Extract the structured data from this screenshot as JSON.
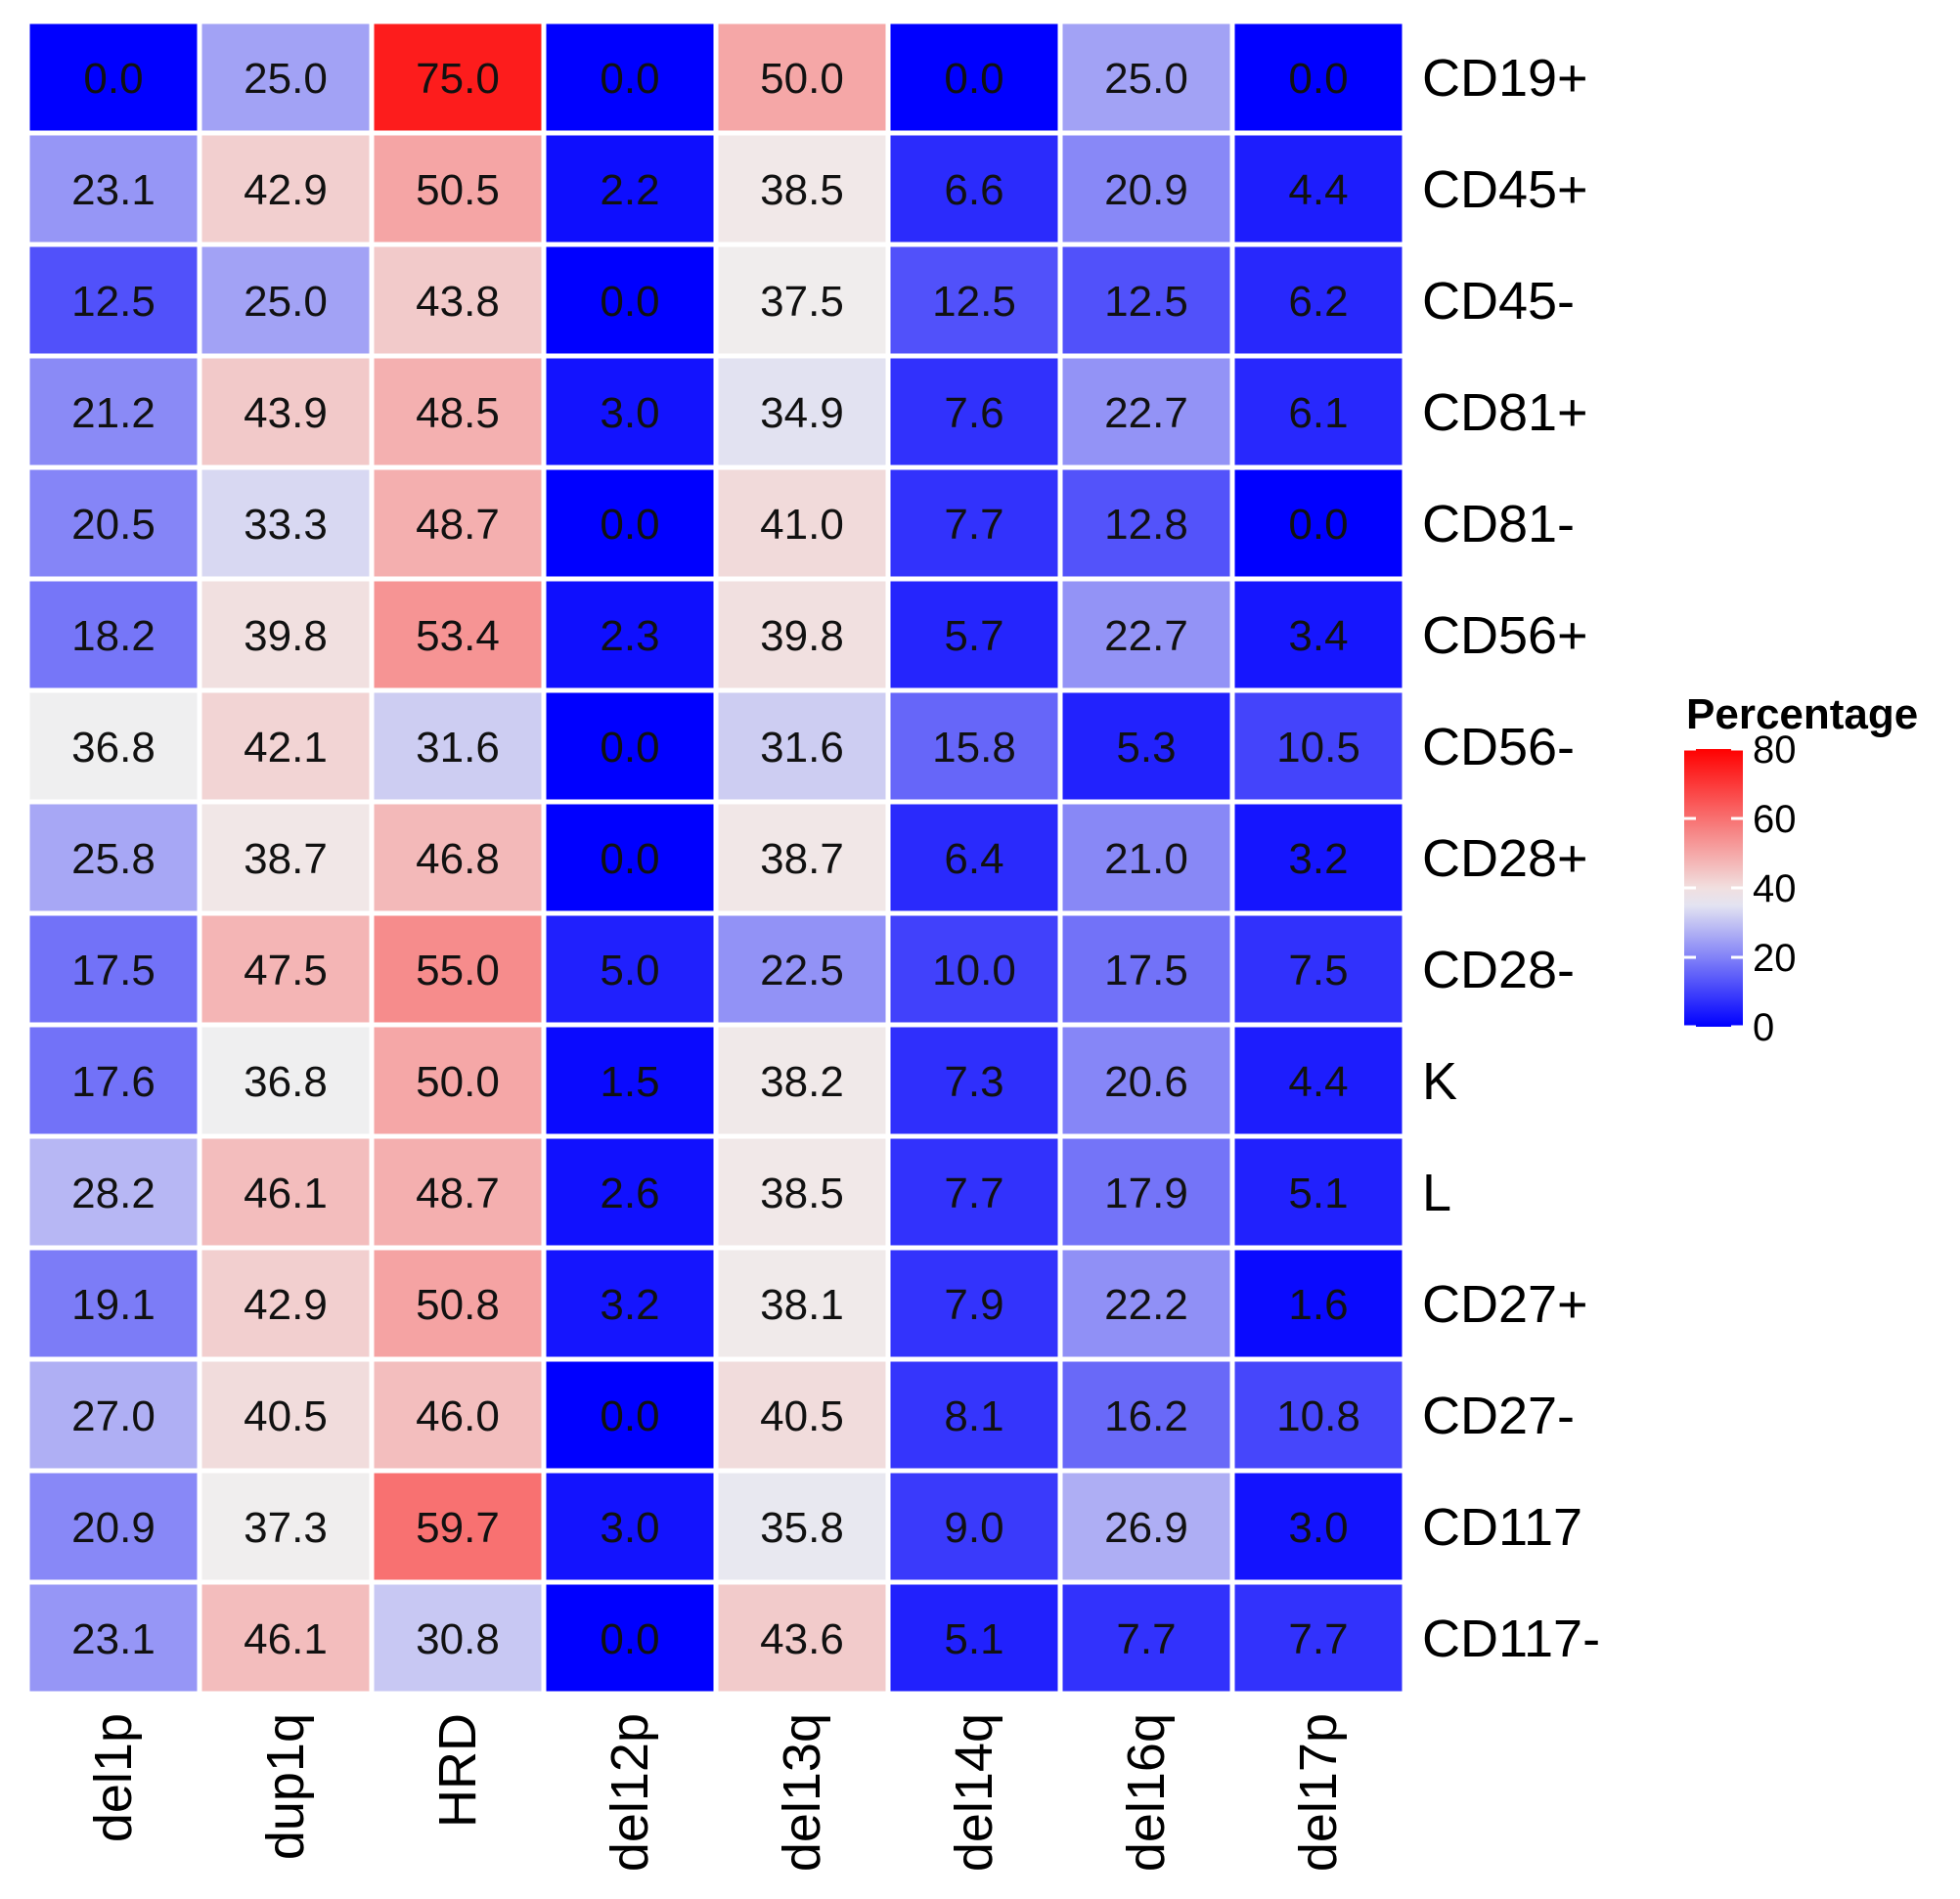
{
  "chart_data": {
    "type": "heatmap",
    "title": "",
    "xlabel": "",
    "ylabel": "",
    "columns": [
      "del1p",
      "dup1q",
      "HRD",
      "del12p",
      "del13q",
      "del14q",
      "del16q",
      "del17p"
    ],
    "rows": [
      "CD19+",
      "CD45+",
      "CD45-",
      "CD81+",
      "CD81-",
      "CD56+",
      "CD56-",
      "CD28+",
      "CD28-",
      "K",
      "L",
      "CD27+",
      "CD27-",
      "CD117",
      "CD117-"
    ],
    "values": [
      [
        0.0,
        25.0,
        75.0,
        0.0,
        50.0,
        0.0,
        25.0,
        0.0
      ],
      [
        23.1,
        42.9,
        50.5,
        2.2,
        38.5,
        6.6,
        20.9,
        4.4
      ],
      [
        12.5,
        25.0,
        43.8,
        0.0,
        37.5,
        12.5,
        12.5,
        6.2
      ],
      [
        21.2,
        43.9,
        48.5,
        3.0,
        34.9,
        7.6,
        22.7,
        6.1
      ],
      [
        20.5,
        33.3,
        48.7,
        0.0,
        41.0,
        7.7,
        12.8,
        0.0
      ],
      [
        18.2,
        39.8,
        53.4,
        2.3,
        39.8,
        5.7,
        22.7,
        3.4
      ],
      [
        36.8,
        42.1,
        31.6,
        0.0,
        31.6,
        15.8,
        5.3,
        10.5
      ],
      [
        25.8,
        38.7,
        46.8,
        0.0,
        38.7,
        6.4,
        21.0,
        3.2
      ],
      [
        17.5,
        47.5,
        55.0,
        5.0,
        22.5,
        10.0,
        17.5,
        7.5
      ],
      [
        17.6,
        36.8,
        50.0,
        1.5,
        38.2,
        7.3,
        20.6,
        4.4
      ],
      [
        28.2,
        46.1,
        48.7,
        2.6,
        38.5,
        7.7,
        17.9,
        5.1
      ],
      [
        19.1,
        42.9,
        50.8,
        3.2,
        38.1,
        7.9,
        22.2,
        1.6
      ],
      [
        27.0,
        40.5,
        46.0,
        0.0,
        40.5,
        8.1,
        16.2,
        10.8
      ],
      [
        20.9,
        37.3,
        59.7,
        3.0,
        35.8,
        9.0,
        26.9,
        3.0
      ],
      [
        23.1,
        46.1,
        30.8,
        0.0,
        43.6,
        5.1,
        7.7,
        7.7
      ]
    ],
    "legend": {
      "title": "Percentage",
      "ticks": [
        "0",
        "20",
        "40",
        "60",
        "80"
      ],
      "min": 0,
      "max": 80,
      "midpoint": 37,
      "position": "right"
    },
    "colors": {
      "low": "#0000ff",
      "mid": "#f0f0f0",
      "high": "#ff0000"
    }
  }
}
